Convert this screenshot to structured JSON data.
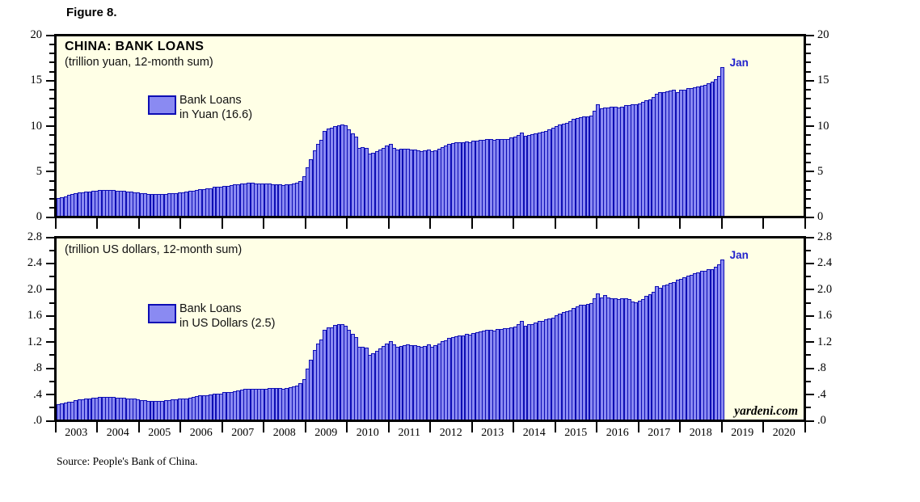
{
  "figure_label": "Figure 8.",
  "source_note": "Source: People's Bank of China.",
  "watermark": "yardeni.com",
  "colors": {
    "plot_background": "#FFFFE6",
    "bar_fill": "#8A8AF2",
    "bar_border": "#0D0DB4",
    "axis": "#000000",
    "annotation_blue": "#2222CC"
  },
  "x_years": [
    "2003",
    "2004",
    "2005",
    "2006",
    "2007",
    "2008",
    "2009",
    "2010",
    "2011",
    "2012",
    "2013",
    "2014",
    "2015",
    "2016",
    "2017",
    "2018",
    "2019",
    "2020"
  ],
  "chart_data": [
    {
      "type": "bar",
      "title": "CHINA: BANK LOANS",
      "subtitle": "(trillion yuan, 12-month sum)",
      "legend": {
        "line1": "Bank Loans",
        "line2": "in Yuan (16.6)"
      },
      "latest_label": "Jan",
      "latest_value": 16.6,
      "x_start": "2003-01",
      "x_end": "2019-01",
      "x_axis_span_years": 18,
      "ylim": [
        0,
        20
      ],
      "y_major_values": [
        0,
        5,
        10,
        15,
        20
      ],
      "y_major_ticks": [
        "0",
        "5",
        "10",
        "15",
        "20"
      ],
      "y_minor_step": 1,
      "grid": false,
      "values": [
        2.0,
        2.1,
        2.2,
        2.3,
        2.4,
        2.5,
        2.6,
        2.6,
        2.7,
        2.7,
        2.8,
        2.8,
        2.9,
        2.9,
        2.9,
        2.9,
        2.9,
        2.8,
        2.8,
        2.8,
        2.7,
        2.7,
        2.6,
        2.6,
        2.5,
        2.5,
        2.4,
        2.4,
        2.4,
        2.4,
        2.4,
        2.4,
        2.5,
        2.5,
        2.5,
        2.6,
        2.6,
        2.7,
        2.8,
        2.8,
        2.9,
        3.0,
        3.0,
        3.1,
        3.1,
        3.2,
        3.2,
        3.2,
        3.3,
        3.3,
        3.4,
        3.5,
        3.5,
        3.6,
        3.6,
        3.7,
        3.7,
        3.6,
        3.6,
        3.6,
        3.6,
        3.6,
        3.5,
        3.5,
        3.5,
        3.4,
        3.5,
        3.5,
        3.6,
        3.7,
        3.9,
        4.4,
        5.4,
        6.3,
        7.3,
        8.0,
        8.5,
        9.5,
        9.7,
        9.8,
        10.0,
        10.1,
        10.2,
        10.1,
        9.6,
        9.2,
        8.8,
        7.6,
        7.7,
        7.6,
        6.9,
        7.0,
        7.2,
        7.4,
        7.6,
        7.8,
        8.0,
        7.6,
        7.4,
        7.5,
        7.5,
        7.5,
        7.4,
        7.4,
        7.3,
        7.2,
        7.3,
        7.4,
        7.2,
        7.3,
        7.5,
        7.7,
        7.8,
        8.0,
        8.1,
        8.2,
        8.2,
        8.2,
        8.3,
        8.2,
        8.4,
        8.4,
        8.5,
        8.5,
        8.6,
        8.6,
        8.5,
        8.6,
        8.6,
        8.6,
        8.6,
        8.7,
        8.8,
        9.0,
        9.3,
        8.9,
        9.0,
        9.1,
        9.2,
        9.3,
        9.4,
        9.5,
        9.6,
        9.8,
        10.0,
        10.2,
        10.3,
        10.4,
        10.5,
        10.8,
        10.9,
        11.0,
        11.1,
        11.1,
        11.2,
        11.7,
        12.4,
        12.0,
        12.1,
        12.1,
        12.2,
        12.2,
        12.1,
        12.2,
        12.3,
        12.3,
        12.4,
        12.4,
        12.5,
        12.7,
        12.9,
        13.0,
        13.2,
        13.6,
        13.8,
        13.8,
        13.9,
        14.0,
        14.1,
        13.8,
        14.1,
        14.1,
        14.2,
        14.2,
        14.3,
        14.4,
        14.5,
        14.6,
        14.8,
        15.0,
        15.2,
        15.6,
        16.6
      ]
    },
    {
      "type": "bar",
      "title": "",
      "subtitle": "(trillion US dollars, 12-month sum)",
      "legend": {
        "line1": "Bank Loans",
        "line2": "in US Dollars (2.5)"
      },
      "latest_label": "Jan",
      "latest_value": 2.5,
      "x_start": "2003-01",
      "x_end": "2019-01",
      "x_axis_span_years": 18,
      "ylim": [
        0,
        2.8
      ],
      "y_major_values": [
        0,
        0.4,
        0.8,
        1.2,
        1.6,
        2.0,
        2.4,
        2.8
      ],
      "y_major_ticks": [
        ".0",
        ".4",
        ".8",
        "1.2",
        "1.6",
        "2.0",
        "2.4",
        "2.8"
      ],
      "y_minor_step": 0.2,
      "grid": false,
      "values": [
        0.24,
        0.25,
        0.26,
        0.27,
        0.28,
        0.3,
        0.31,
        0.31,
        0.32,
        0.33,
        0.34,
        0.34,
        0.35,
        0.35,
        0.35,
        0.35,
        0.35,
        0.34,
        0.34,
        0.34,
        0.33,
        0.33,
        0.32,
        0.31,
        0.3,
        0.3,
        0.29,
        0.29,
        0.29,
        0.29,
        0.29,
        0.3,
        0.3,
        0.31,
        0.31,
        0.32,
        0.32,
        0.33,
        0.34,
        0.35,
        0.36,
        0.37,
        0.38,
        0.38,
        0.39,
        0.4,
        0.4,
        0.4,
        0.42,
        0.42,
        0.43,
        0.44,
        0.45,
        0.46,
        0.47,
        0.48,
        0.48,
        0.48,
        0.47,
        0.48,
        0.48,
        0.49,
        0.49,
        0.49,
        0.49,
        0.48,
        0.49,
        0.5,
        0.51,
        0.53,
        0.56,
        0.63,
        0.79,
        0.92,
        1.07,
        1.17,
        1.24,
        1.39,
        1.42,
        1.43,
        1.46,
        1.47,
        1.47,
        1.45,
        1.39,
        1.33,
        1.27,
        1.12,
        1.12,
        1.11,
        1.0,
        1.02,
        1.06,
        1.1,
        1.14,
        1.17,
        1.21,
        1.16,
        1.13,
        1.14,
        1.15,
        1.16,
        1.15,
        1.15,
        1.14,
        1.13,
        1.14,
        1.16,
        1.13,
        1.15,
        1.18,
        1.21,
        1.23,
        1.26,
        1.27,
        1.29,
        1.3,
        1.3,
        1.32,
        1.31,
        1.34,
        1.35,
        1.36,
        1.37,
        1.39,
        1.39,
        1.38,
        1.4,
        1.4,
        1.41,
        1.41,
        1.43,
        1.44,
        1.47,
        1.52,
        1.45,
        1.47,
        1.48,
        1.5,
        1.52,
        1.53,
        1.55,
        1.56,
        1.58,
        1.61,
        1.64,
        1.66,
        1.67,
        1.69,
        1.73,
        1.75,
        1.77,
        1.78,
        1.79,
        1.8,
        1.88,
        1.95,
        1.89,
        1.93,
        1.89,
        1.88,
        1.87,
        1.86,
        1.87,
        1.87,
        1.86,
        1.82,
        1.81,
        1.84,
        1.86,
        1.91,
        1.94,
        1.97,
        2.06,
        2.04,
        2.07,
        2.09,
        2.11,
        2.13,
        2.16,
        2.17,
        2.2,
        2.22,
        2.24,
        2.26,
        2.28,
        2.3,
        2.3,
        2.32,
        2.33,
        2.36,
        2.4,
        2.47
      ]
    }
  ]
}
